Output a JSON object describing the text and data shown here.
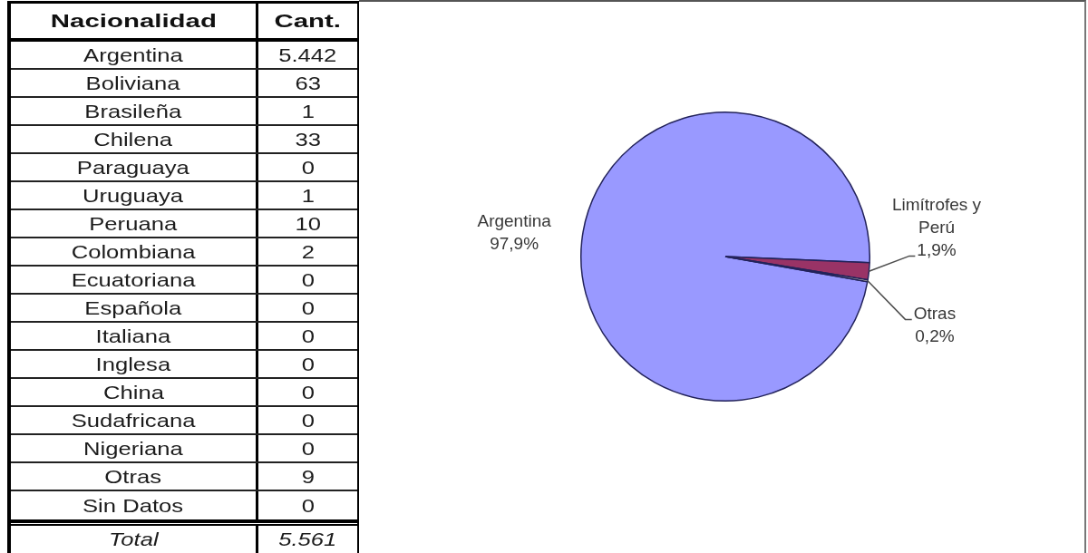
{
  "chart_data": [
    {
      "type": "other",
      "xlabel": "Nacionalidad",
      "ylabel": "Cant.",
      "categories": [
        "Argentina",
        "Boliviana",
        "Brasileña",
        "Chilena",
        "Paraguaya",
        "Uruguaya",
        "Peruana",
        "Colombiana",
        "Ecuatoriana",
        "Española",
        "Italiana",
        "Inglesa",
        "China",
        "Sudafricana",
        "Nigeriana",
        "Otras",
        "Sin Datos"
      ],
      "values": [
        5442,
        63,
        1,
        33,
        0,
        1,
        10,
        2,
        0,
        0,
        0,
        0,
        0,
        0,
        0,
        9,
        0
      ],
      "value_labels": [
        "5.442",
        "63",
        "1",
        "33",
        "0",
        "1",
        "10",
        "2",
        "0",
        "0",
        "0",
        "0",
        "0",
        "0",
        "0",
        "9",
        "0"
      ],
      "totals": [
        "5.561"
      ],
      "annotations": [
        "Total"
      ]
    },
    {
      "type": "pie",
      "categories": [
        "Argentina",
        "Limítrofes y Perú",
        "Otras"
      ],
      "values": [
        97.9,
        1.9,
        0.2
      ],
      "colors": [
        "#9999ff",
        "#993366",
        "#ffffcc"
      ],
      "value_labels": [
        "97,9%",
        "1,9%",
        "0,2%"
      ]
    }
  ]
}
